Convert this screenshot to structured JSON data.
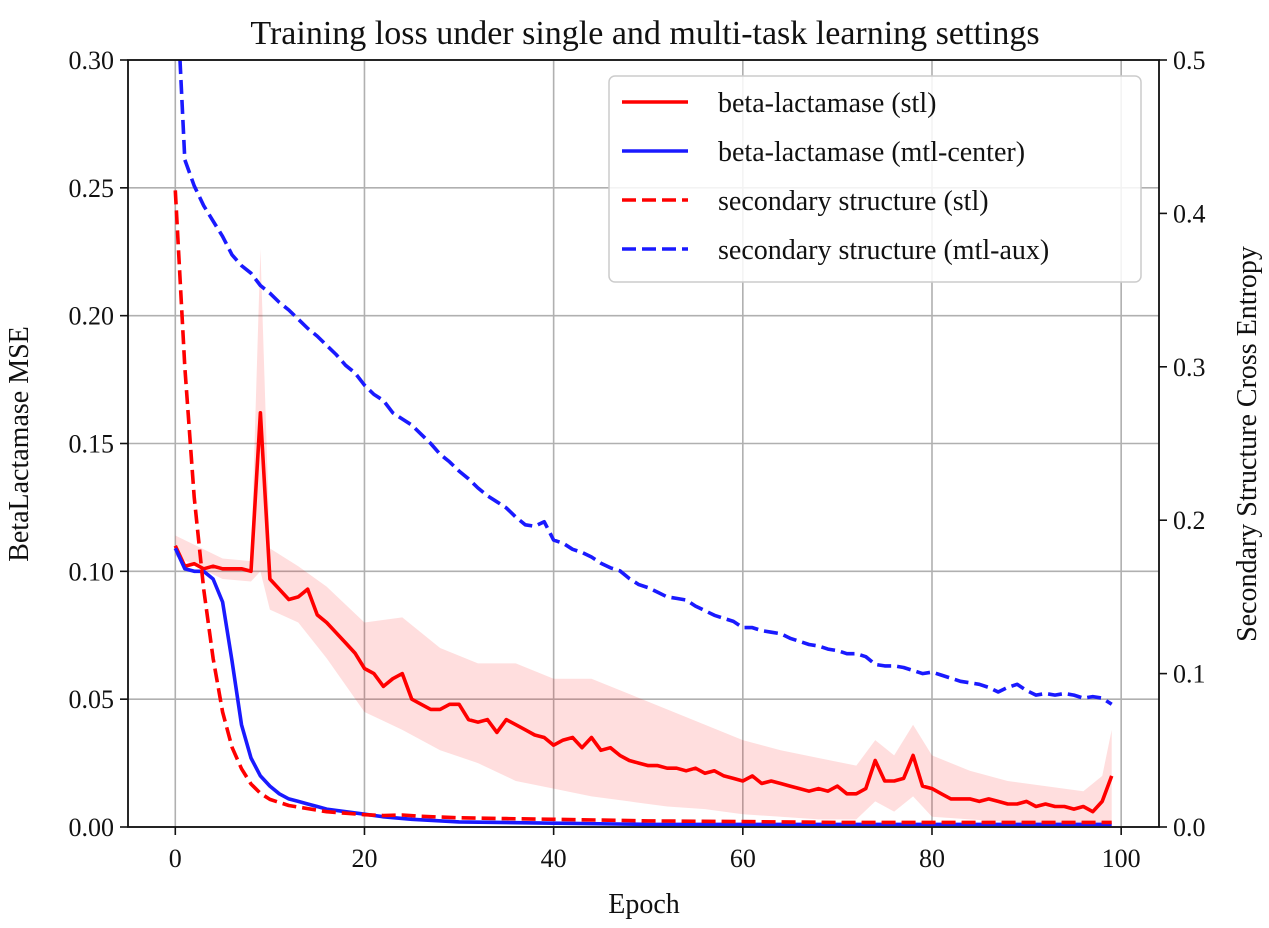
{
  "chart_data": {
    "type": "line",
    "title": "Training loss under single and multi-task learning settings",
    "xlabel": "Epoch",
    "ylabel_left": "BetaLactamase MSE",
    "ylabel_right": "Secondary Structure Cross Entropy",
    "xlim": [
      -5,
      104
    ],
    "ylim_left": [
      0,
      0.3
    ],
    "ylim_right": [
      0,
      0.5
    ],
    "x_ticks": [
      "0",
      "20",
      "40",
      "60",
      "80",
      "100"
    ],
    "y_ticks_left": [
      "0.00",
      "0.05",
      "0.10",
      "0.15",
      "0.20",
      "0.25",
      "0.30"
    ],
    "y_ticks_right": [
      "0.0",
      "0.1",
      "0.2",
      "0.3",
      "0.4",
      "0.5"
    ],
    "grid": true,
    "legend_position": "top-right",
    "series": [
      {
        "name": "beta-lactamase (stl)",
        "axis": "left",
        "color": "#ff0000",
        "style": "solid",
        "points": [
          [
            0,
            0.11
          ],
          [
            1,
            0.102
          ],
          [
            2,
            0.103
          ],
          [
            3,
            0.101
          ],
          [
            4,
            0.102
          ],
          [
            5,
            0.101
          ],
          [
            6,
            0.101
          ],
          [
            7,
            0.101
          ],
          [
            8,
            0.1
          ],
          [
            9,
            0.162
          ],
          [
            10,
            0.097
          ],
          [
            11,
            0.093
          ],
          [
            12,
            0.089
          ],
          [
            13,
            0.09
          ],
          [
            14,
            0.093
          ],
          [
            15,
            0.083
          ],
          [
            16,
            0.08
          ],
          [
            17,
            0.076
          ],
          [
            18,
            0.072
          ],
          [
            19,
            0.068
          ],
          [
            20,
            0.062
          ],
          [
            21,
            0.06
          ],
          [
            22,
            0.055
          ],
          [
            23,
            0.058
          ],
          [
            24,
            0.06
          ],
          [
            25,
            0.05
          ],
          [
            26,
            0.048
          ],
          [
            27,
            0.046
          ],
          [
            28,
            0.046
          ],
          [
            29,
            0.048
          ],
          [
            30,
            0.048
          ],
          [
            31,
            0.042
          ],
          [
            32,
            0.041
          ],
          [
            33,
            0.042
          ],
          [
            34,
            0.037
          ],
          [
            35,
            0.042
          ],
          [
            36,
            0.04
          ],
          [
            37,
            0.038
          ],
          [
            38,
            0.036
          ],
          [
            39,
            0.035
          ],
          [
            40,
            0.032
          ],
          [
            41,
            0.034
          ],
          [
            42,
            0.035
          ],
          [
            43,
            0.031
          ],
          [
            44,
            0.035
          ],
          [
            45,
            0.03
          ],
          [
            46,
            0.031
          ],
          [
            47,
            0.028
          ],
          [
            48,
            0.026
          ],
          [
            49,
            0.025
          ],
          [
            50,
            0.024
          ],
          [
            51,
            0.024
          ],
          [
            52,
            0.023
          ],
          [
            53,
            0.023
          ],
          [
            54,
            0.022
          ],
          [
            55,
            0.023
          ],
          [
            56,
            0.021
          ],
          [
            57,
            0.022
          ],
          [
            58,
            0.02
          ],
          [
            59,
            0.019
          ],
          [
            60,
            0.018
          ],
          [
            61,
            0.02
          ],
          [
            62,
            0.017
          ],
          [
            63,
            0.018
          ],
          [
            64,
            0.017
          ],
          [
            65,
            0.016
          ],
          [
            66,
            0.015
          ],
          [
            67,
            0.014
          ],
          [
            68,
            0.015
          ],
          [
            69,
            0.014
          ],
          [
            70,
            0.016
          ],
          [
            71,
            0.013
          ],
          [
            72,
            0.013
          ],
          [
            73,
            0.015
          ],
          [
            74,
            0.026
          ],
          [
            75,
            0.018
          ],
          [
            76,
            0.018
          ],
          [
            77,
            0.019
          ],
          [
            78,
            0.028
          ],
          [
            79,
            0.016
          ],
          [
            80,
            0.015
          ],
          [
            81,
            0.013
          ],
          [
            82,
            0.011
          ],
          [
            83,
            0.011
          ],
          [
            84,
            0.011
          ],
          [
            85,
            0.01
          ],
          [
            86,
            0.011
          ],
          [
            87,
            0.01
          ],
          [
            88,
            0.009
          ],
          [
            89,
            0.009
          ],
          [
            90,
            0.01
          ],
          [
            91,
            0.008
          ],
          [
            92,
            0.009
          ],
          [
            93,
            0.008
          ],
          [
            94,
            0.008
          ],
          [
            95,
            0.007
          ],
          [
            96,
            0.008
          ],
          [
            97,
            0.006
          ],
          [
            98,
            0.01
          ],
          [
            99,
            0.02
          ]
        ],
        "band": [
          [
            0,
            0.106,
            0.114
          ],
          [
            5,
            0.097,
            0.105
          ],
          [
            8,
            0.096,
            0.104
          ],
          [
            9,
            0.1,
            0.226
          ],
          [
            10,
            0.085,
            0.109
          ],
          [
            13,
            0.08,
            0.102
          ],
          [
            16,
            0.066,
            0.094
          ],
          [
            20,
            0.045,
            0.08
          ],
          [
            24,
            0.038,
            0.082
          ],
          [
            28,
            0.03,
            0.07
          ],
          [
            32,
            0.025,
            0.064
          ],
          [
            36,
            0.018,
            0.064
          ],
          [
            40,
            0.015,
            0.058
          ],
          [
            44,
            0.012,
            0.058
          ],
          [
            48,
            0.01,
            0.052
          ],
          [
            52,
            0.008,
            0.046
          ],
          [
            56,
            0.007,
            0.04
          ],
          [
            60,
            0.005,
            0.034
          ],
          [
            64,
            0.004,
            0.03
          ],
          [
            68,
            0.003,
            0.027
          ],
          [
            72,
            0.003,
            0.024
          ],
          [
            74,
            0.01,
            0.034
          ],
          [
            76,
            0.006,
            0.028
          ],
          [
            78,
            0.012,
            0.04
          ],
          [
            80,
            0.004,
            0.028
          ],
          [
            84,
            0.003,
            0.022
          ],
          [
            88,
            0.002,
            0.018
          ],
          [
            92,
            0.001,
            0.016
          ],
          [
            96,
            0.001,
            0.014
          ],
          [
            98,
            0.001,
            0.02
          ],
          [
            99,
            0.002,
            0.038
          ]
        ]
      },
      {
        "name": "beta-lactamase (mtl-center)",
        "axis": "left",
        "color": "#1a1aff",
        "style": "solid",
        "points": [
          [
            0,
            0.109
          ],
          [
            1,
            0.101
          ],
          [
            2,
            0.1
          ],
          [
            3,
            0.1
          ],
          [
            4,
            0.097
          ],
          [
            5,
            0.088
          ],
          [
            6,
            0.065
          ],
          [
            7,
            0.04
          ],
          [
            8,
            0.027
          ],
          [
            9,
            0.02
          ],
          [
            10,
            0.016
          ],
          [
            11,
            0.013
          ],
          [
            12,
            0.011
          ],
          [
            13,
            0.01
          ],
          [
            14,
            0.009
          ],
          [
            15,
            0.008
          ],
          [
            16,
            0.007
          ],
          [
            18,
            0.006
          ],
          [
            20,
            0.005
          ],
          [
            22,
            0.004
          ],
          [
            25,
            0.003
          ],
          [
            30,
            0.002
          ],
          [
            40,
            0.0015
          ],
          [
            50,
            0.001
          ],
          [
            60,
            0.001
          ],
          [
            70,
            0.001
          ],
          [
            80,
            0.001
          ],
          [
            90,
            0.001
          ],
          [
            99,
            0.001
          ]
        ]
      },
      {
        "name": "secondary structure (stl)",
        "axis": "right",
        "color": "#ff0000",
        "style": "dashed",
        "points": [
          [
            0,
            0.415
          ],
          [
            1,
            0.3
          ],
          [
            2,
            0.215
          ],
          [
            3,
            0.155
          ],
          [
            4,
            0.11
          ],
          [
            5,
            0.075
          ],
          [
            6,
            0.052
          ],
          [
            7,
            0.038
          ],
          [
            8,
            0.028
          ],
          [
            9,
            0.022
          ],
          [
            10,
            0.018
          ],
          [
            12,
            0.014
          ],
          [
            14,
            0.012
          ],
          [
            16,
            0.01
          ],
          [
            18,
            0.009
          ],
          [
            20,
            0.008
          ],
          [
            22,
            0.0075
          ],
          [
            24,
            0.0078
          ],
          [
            26,
            0.007
          ],
          [
            30,
            0.006
          ],
          [
            35,
            0.0055
          ],
          [
            40,
            0.005
          ],
          [
            45,
            0.0045
          ],
          [
            50,
            0.004
          ],
          [
            60,
            0.0035
          ],
          [
            70,
            0.003
          ],
          [
            80,
            0.003
          ],
          [
            90,
            0.003
          ],
          [
            99,
            0.003
          ]
        ]
      },
      {
        "name": "secondary structure (mtl-aux)",
        "axis": "right",
        "color": "#1a1aff",
        "style": "dashed",
        "points": [
          [
            0.5,
            0.5
          ],
          [
            1,
            0.435
          ],
          [
            2,
            0.418
          ],
          [
            3,
            0.405
          ],
          [
            4,
            0.395
          ],
          [
            5,
            0.385
          ],
          [
            6,
            0.373
          ],
          [
            7,
            0.366
          ],
          [
            8,
            0.361
          ],
          [
            9,
            0.353
          ],
          [
            10,
            0.348
          ],
          [
            11,
            0.342
          ],
          [
            12,
            0.337
          ],
          [
            13,
            0.331
          ],
          [
            14,
            0.325
          ],
          [
            15,
            0.32
          ],
          [
            16,
            0.314
          ],
          [
            17,
            0.308
          ],
          [
            18,
            0.301
          ],
          [
            19,
            0.296
          ],
          [
            20,
            0.288
          ],
          [
            21,
            0.282
          ],
          [
            22,
            0.278
          ],
          [
            23,
            0.27
          ],
          [
            24,
            0.266
          ],
          [
            25,
            0.262
          ],
          [
            26,
            0.256
          ],
          [
            27,
            0.25
          ],
          [
            28,
            0.243
          ],
          [
            29,
            0.238
          ],
          [
            30,
            0.232
          ],
          [
            31,
            0.227
          ],
          [
            32,
            0.221
          ],
          [
            33,
            0.216
          ],
          [
            34,
            0.212
          ],
          [
            35,
            0.208
          ],
          [
            36,
            0.202
          ],
          [
            37,
            0.197
          ],
          [
            38,
            0.196
          ],
          [
            39,
            0.199
          ],
          [
            40,
            0.187
          ],
          [
            41,
            0.185
          ],
          [
            42,
            0.181
          ],
          [
            43,
            0.179
          ],
          [
            44,
            0.176
          ],
          [
            45,
            0.172
          ],
          [
            46,
            0.169
          ],
          [
            47,
            0.167
          ],
          [
            48,
            0.162
          ],
          [
            49,
            0.158
          ],
          [
            50,
            0.156
          ],
          [
            51,
            0.153
          ],
          [
            52,
            0.15
          ],
          [
            53,
            0.149
          ],
          [
            54,
            0.148
          ],
          [
            55,
            0.144
          ],
          [
            56,
            0.141
          ],
          [
            57,
            0.138
          ],
          [
            58,
            0.136
          ],
          [
            59,
            0.134
          ],
          [
            60,
            0.13
          ],
          [
            61,
            0.13
          ],
          [
            62,
            0.128
          ],
          [
            63,
            0.127
          ],
          [
            64,
            0.126
          ],
          [
            65,
            0.123
          ],
          [
            66,
            0.121
          ],
          [
            67,
            0.119
          ],
          [
            68,
            0.118
          ],
          [
            69,
            0.116
          ],
          [
            70,
            0.115
          ],
          [
            71,
            0.113
          ],
          [
            72,
            0.113
          ],
          [
            73,
            0.111
          ],
          [
            74,
            0.106
          ],
          [
            75,
            0.105
          ],
          [
            76,
            0.105
          ],
          [
            77,
            0.104
          ],
          [
            78,
            0.102
          ],
          [
            79,
            0.1
          ],
          [
            80,
            0.101
          ],
          [
            81,
            0.099
          ],
          [
            82,
            0.097
          ],
          [
            83,
            0.095
          ],
          [
            84,
            0.094
          ],
          [
            85,
            0.093
          ],
          [
            86,
            0.091
          ],
          [
            87,
            0.088
          ],
          [
            88,
            0.091
          ],
          [
            89,
            0.093
          ],
          [
            90,
            0.089
          ],
          [
            91,
            0.086
          ],
          [
            92,
            0.087
          ],
          [
            93,
            0.086
          ],
          [
            94,
            0.087
          ],
          [
            95,
            0.086
          ],
          [
            96,
            0.084
          ],
          [
            97,
            0.085
          ],
          [
            98,
            0.084
          ],
          [
            99,
            0.08
          ]
        ]
      }
    ]
  }
}
